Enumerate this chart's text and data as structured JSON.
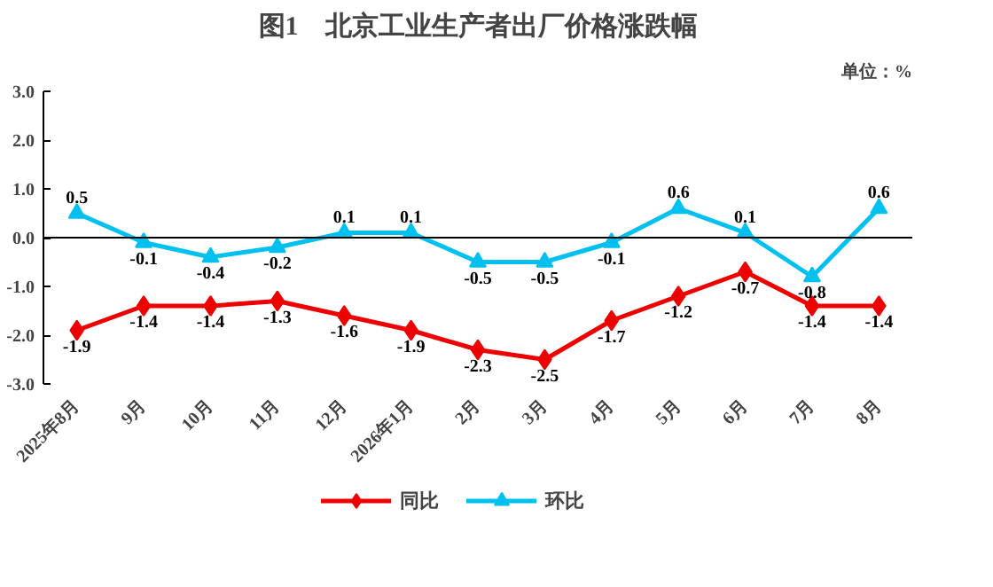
{
  "chart_data": {
    "type": "line",
    "title": "图1　北京工业生产者出厂价格涨跌幅",
    "annotations": [
      "单位：%"
    ],
    "categories": [
      "2025年8月",
      "9月",
      "10月",
      "11月",
      "12月",
      "2026年1月",
      "2月",
      "3月",
      "4月",
      "5月",
      "6月",
      "7月",
      "8月"
    ],
    "series": [
      {
        "name": "同比",
        "color": "#ee0000",
        "marker": "diamond",
        "values": [
          -1.9,
          -1.4,
          -1.4,
          -1.3,
          -1.6,
          -1.9,
          -2.3,
          -2.5,
          -1.7,
          -1.2,
          -0.7,
          -1.4,
          -1.4
        ]
      },
      {
        "name": "环比",
        "color": "#00c0f0",
        "marker": "triangle",
        "values": [
          0.5,
          -0.1,
          -0.4,
          -0.2,
          0.1,
          0.1,
          -0.5,
          -0.5,
          -0.1,
          0.6,
          0.1,
          -0.8,
          0.6
        ]
      }
    ],
    "ylim": [
      -3.0,
      3.0
    ],
    "yticks": [
      {
        "value": -3,
        "label": "-3.0"
      },
      {
        "value": -2,
        "label": "-2.0"
      },
      {
        "value": -1,
        "label": "-1.0"
      },
      {
        "value": 0,
        "label": "0.0"
      },
      {
        "value": 1,
        "label": "1.0"
      },
      {
        "value": 2,
        "label": "2.0"
      },
      {
        "value": 3,
        "label": "3.0"
      }
    ],
    "ref_lines": [
      {
        "axis": "y",
        "value": 0,
        "color": "#000000"
      }
    ],
    "data_labels": true,
    "legend": "bottom",
    "grid": false
  }
}
